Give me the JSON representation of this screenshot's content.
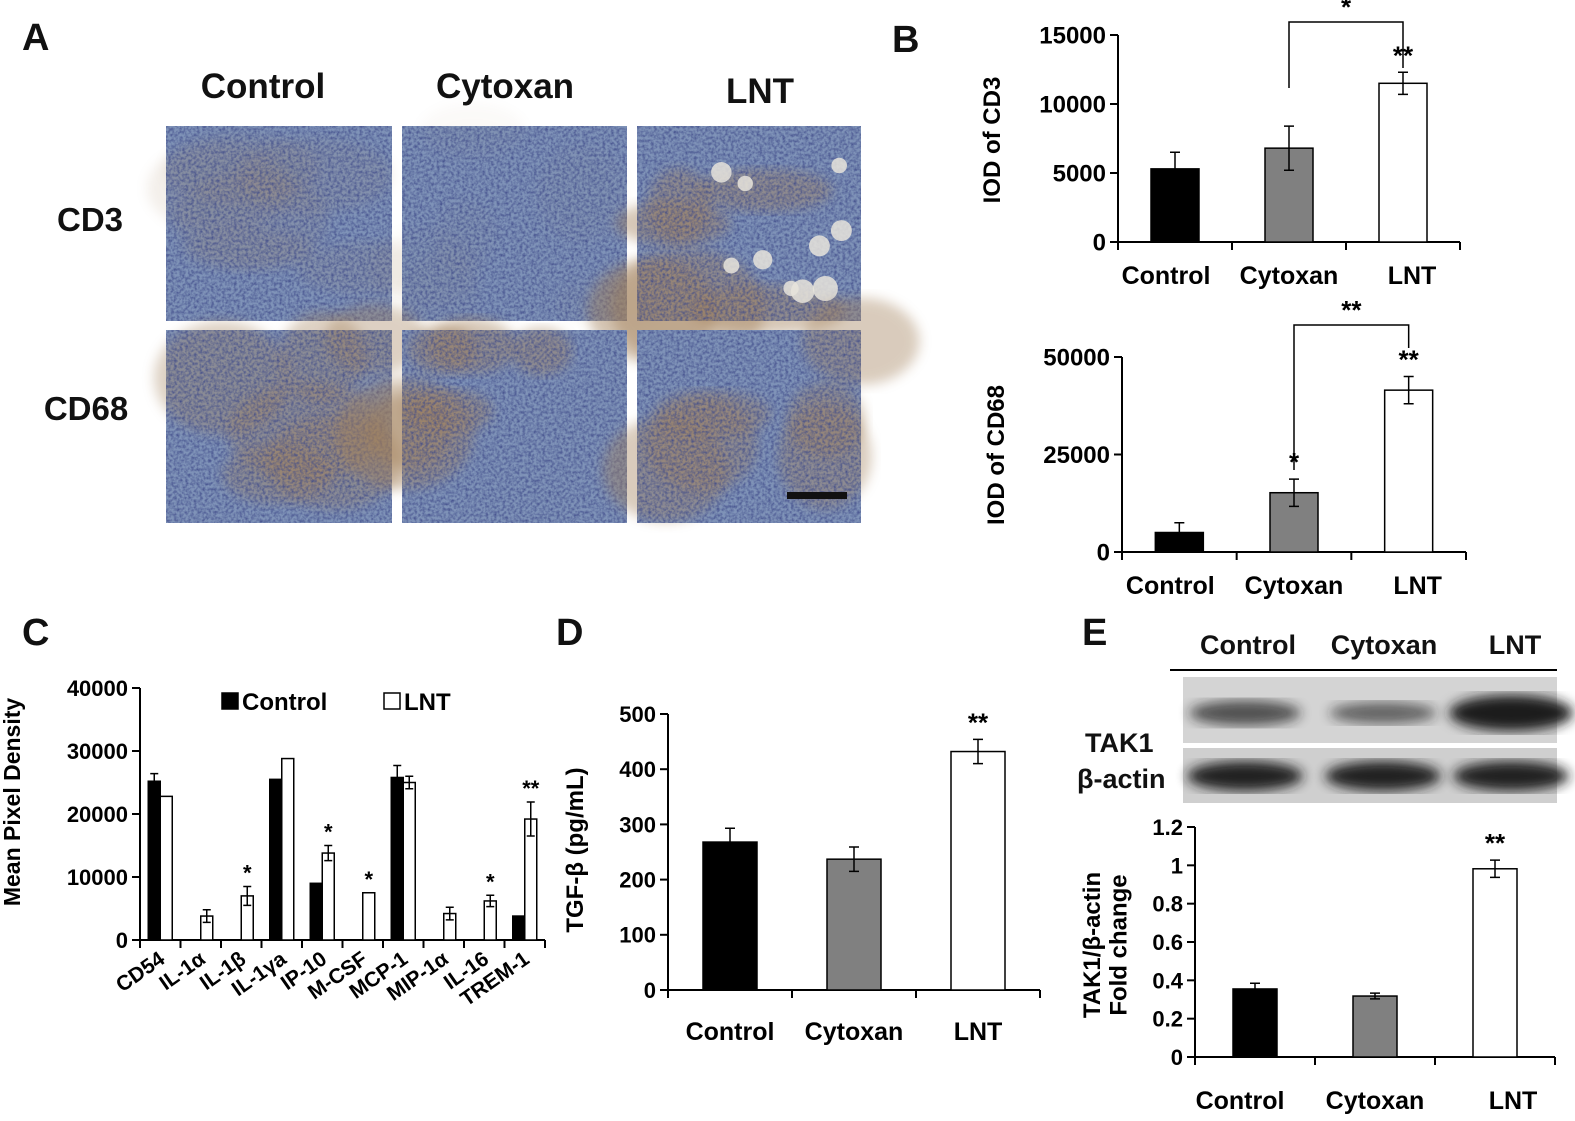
{
  "panel_a": {
    "letter": "A",
    "columns": [
      "Control",
      "Cytoxan",
      "LNT"
    ],
    "rows": [
      "CD3",
      "CD68"
    ]
  },
  "panel_e_blot": {
    "columns": [
      "Control",
      "Cytoxan",
      "LNT"
    ],
    "rows": [
      "TAK1",
      "β-actin"
    ],
    "band_intensity": {
      "TAK1": [
        0.55,
        0.4,
        1.0
      ],
      "β-actin": [
        0.95,
        0.95,
        0.95
      ]
    }
  },
  "colors": {
    "control": "#000000",
    "cytoxan": "#808080",
    "lnt": "#ffffff",
    "ihc_blue": "#7f93b8",
    "ihc_brown": "#a2805a"
  },
  "chart_data": [
    {
      "id": "B1",
      "letter": "B",
      "type": "bar",
      "categories": [
        "Control",
        "Cytoxan",
        "LNT"
      ],
      "values": [
        5300,
        6800,
        11500
      ],
      "errors": [
        1200,
        1600,
        800
      ],
      "ylabel": "IOD of CD3",
      "ylim": [
        0,
        15000
      ],
      "yticks": [
        0,
        5000,
        10000,
        15000
      ],
      "significance": [
        "",
        "",
        "**"
      ],
      "brackets": [
        {
          "from": 1,
          "to": 2,
          "label": "*"
        }
      ]
    },
    {
      "id": "B2",
      "letter": "",
      "type": "bar",
      "categories": [
        "Control",
        "Cytoxan",
        "LNT"
      ],
      "values": [
        5000,
        15200,
        41500
      ],
      "errors": [
        2500,
        3500,
        3500
      ],
      "ylabel": "IOD of CD68",
      "ylim": [
        0,
        50000
      ],
      "yticks": [
        0,
        25000,
        50000
      ],
      "significance": [
        "",
        "*",
        "**"
      ],
      "brackets": [
        {
          "from": 1,
          "to": 2,
          "label": "**"
        }
      ]
    },
    {
      "id": "C",
      "letter": "C",
      "type": "bar",
      "categories": [
        "CD54",
        "IL-1α",
        "IL-1β",
        "IL-1γa",
        "IP-10",
        "M-CSF",
        "MCP-1",
        "MIP-1α",
        "IL-16",
        "TREM-1"
      ],
      "series": [
        {
          "name": "Control",
          "values": [
            25200,
            0,
            0,
            25500,
            9000,
            0,
            25800,
            0,
            0,
            3800
          ],
          "errors": [
            1200,
            0,
            0,
            0,
            0,
            0,
            1900,
            0,
            0,
            0
          ]
        },
        {
          "name": "LNT",
          "values": [
            22800,
            3800,
            7000,
            28800,
            13800,
            7500,
            25000,
            4200,
            6200,
            19200
          ],
          "errors": [
            0,
            1000,
            1500,
            0,
            1200,
            0,
            1000,
            1000,
            900,
            2700
          ]
        }
      ],
      "significance": [
        "",
        "",
        "*",
        "",
        "*",
        "*",
        "",
        "",
        "*",
        "**"
      ],
      "ylabel": "Mean Pixel Density",
      "ylim": [
        0,
        40000
      ],
      "yticks": [
        0,
        10000,
        20000,
        30000,
        40000
      ],
      "legend": "top"
    },
    {
      "id": "D",
      "letter": "D",
      "type": "bar",
      "categories": [
        "Control",
        "Cytoxan",
        "LNT"
      ],
      "values": [
        268,
        237,
        432
      ],
      "errors": [
        25,
        22,
        22
      ],
      "ylabel": "TGF-β (pg/mL)",
      "ylim": [
        0,
        500
      ],
      "yticks": [
        0,
        100,
        200,
        300,
        400,
        500
      ],
      "significance": [
        "",
        "",
        "**"
      ]
    },
    {
      "id": "E",
      "letter": "E",
      "type": "bar",
      "categories": [
        "Control",
        "Cytoxan",
        "LNT"
      ],
      "values": [
        0.355,
        0.318,
        0.982
      ],
      "errors": [
        0.03,
        0.015,
        0.045
      ],
      "ylabel_line1": "TAK1/β-actin",
      "ylabel_line2": "Fold change",
      "ylim": [
        0,
        1.2
      ],
      "yticks": [
        "0",
        "0.2",
        "0.4",
        "0.6",
        "0.8",
        "1",
        "1.2"
      ],
      "significance": [
        "",
        "",
        "**"
      ]
    }
  ]
}
